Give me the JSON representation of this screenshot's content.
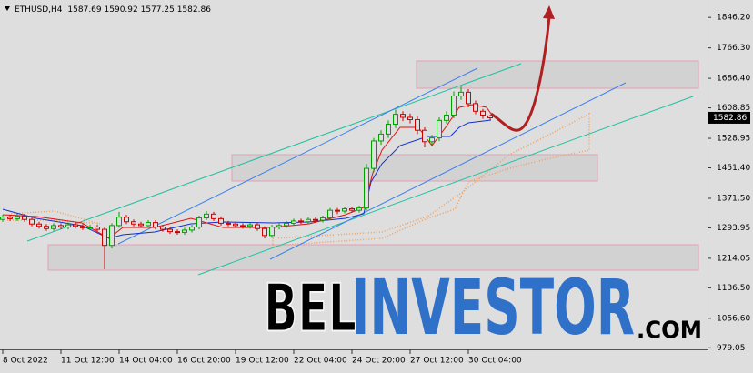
{
  "header": {
    "symbol": "ETHUSD,H4"
  },
  "brand": [
    "BEL",
    "INVESTOR",
    ".COM"
  ],
  "chart_data": {
    "type": "candlestick",
    "up_color": "#00a000",
    "down_color": "#d00000",
    "x": [
      0,
      2,
      4,
      6,
      8,
      10,
      12,
      14,
      16,
      18,
      20,
      22,
      24,
      26,
      28,
      30,
      32,
      34,
      36,
      38,
      40,
      42,
      44,
      46,
      48,
      50,
      52,
      54,
      56,
      58,
      60,
      62,
      64,
      66,
      68,
      70,
      72,
      74,
      76,
      78,
      80,
      82,
      84,
      86,
      88,
      90,
      92,
      94,
      96,
      98,
      100,
      102,
      104,
      106,
      108,
      110,
      112,
      114,
      116,
      118,
      120,
      122,
      124,
      126,
      128,
      130,
      132,
      134
    ],
    "open": [
      1316,
      1322,
      1318,
      1325,
      1316,
      1304,
      1298,
      1292,
      1300,
      1296,
      1302,
      1298,
      1294,
      1296,
      1290,
      1248,
      1300,
      1322,
      1310,
      1304,
      1300,
      1308,
      1296,
      1290,
      1284,
      1282,
      1288,
      1296,
      1320,
      1330,
      1318,
      1306,
      1304,
      1300,
      1298,
      1302,
      1292,
      1274,
      1296,
      1300,
      1306,
      1312,
      1310,
      1316,
      1314,
      1320,
      1340,
      1338,
      1344,
      1340,
      1346,
      1450,
      1522,
      1540,
      1566,
      1592,
      1584,
      1578,
      1550,
      1520,
      1530,
      1576,
      1590,
      1640,
      1650,
      1620,
      1600,
      1587.69
    ],
    "high": [
      1328,
      1328,
      1331,
      1331,
      1322,
      1310,
      1304,
      1306,
      1306,
      1308,
      1308,
      1304,
      1302,
      1302,
      1296,
      1306,
      1336,
      1328,
      1316,
      1310,
      1314,
      1314,
      1302,
      1296,
      1290,
      1294,
      1302,
      1326,
      1338,
      1336,
      1324,
      1312,
      1310,
      1306,
      1308,
      1308,
      1298,
      1302,
      1306,
      1312,
      1318,
      1318,
      1322,
      1322,
      1326,
      1346,
      1346,
      1350,
      1350,
      1352,
      1462,
      1530,
      1550,
      1576,
      1604,
      1600,
      1594,
      1586,
      1558,
      1538,
      1584,
      1600,
      1652,
      1665,
      1658,
      1628,
      1606,
      1590.92
    ],
    "low": [
      1310,
      1312,
      1312,
      1310,
      1298,
      1292,
      1286,
      1286,
      1290,
      1290,
      1292,
      1288,
      1288,
      1284,
      1185,
      1240,
      1294,
      1304,
      1298,
      1294,
      1294,
      1290,
      1284,
      1278,
      1276,
      1276,
      1282,
      1290,
      1314,
      1312,
      1300,
      1298,
      1294,
      1292,
      1292,
      1286,
      1266,
      1268,
      1290,
      1294,
      1300,
      1304,
      1304,
      1308,
      1308,
      1314,
      1330,
      1332,
      1334,
      1334,
      1340,
      1440,
      1512,
      1530,
      1556,
      1574,
      1568,
      1540,
      1505,
      1510,
      1522,
      1568,
      1582,
      1630,
      1610,
      1592,
      1580,
      1577.25
    ],
    "close": [
      1322,
      1318,
      1325,
      1316,
      1304,
      1298,
      1292,
      1300,
      1296,
      1302,
      1298,
      1294,
      1296,
      1290,
      1248,
      1300,
      1322,
      1310,
      1304,
      1300,
      1308,
      1296,
      1290,
      1284,
      1282,
      1288,
      1296,
      1320,
      1330,
      1318,
      1306,
      1304,
      1300,
      1298,
      1302,
      1292,
      1274,
      1296,
      1300,
      1306,
      1312,
      1310,
      1316,
      1314,
      1320,
      1340,
      1338,
      1344,
      1340,
      1346,
      1450,
      1522,
      1540,
      1566,
      1592,
      1584,
      1578,
      1550,
      1520,
      1530,
      1576,
      1590,
      1640,
      1650,
      1620,
      1600,
      1590,
      1582.86
    ],
    "xlim": [
      0,
      194
    ],
    "ylim": [
      975,
      1892
    ],
    "xticks": [
      {
        "value": 0,
        "label": "8 Oct 2022"
      },
      {
        "value": 16,
        "label": "11 Oct 12:00"
      },
      {
        "value": 32,
        "label": "14 Oct 04:00"
      },
      {
        "value": 48,
        "label": "16 Oct 20:00"
      },
      {
        "value": 64,
        "label": "19 Oct 12:00"
      },
      {
        "value": 80,
        "label": "22 Oct 04:00"
      },
      {
        "value": 96,
        "label": "24 Oct 20:00"
      },
      {
        "value": 112,
        "label": "27 Oct 12:00"
      },
      {
        "value": 128,
        "label": "30 Oct 04:00"
      }
    ],
    "yticks": [
      979.05,
      {
        "value": 1056.6,
        "label": "1056.60"
      },
      {
        "value": 1136.5,
        "label": "1136.50"
      },
      1214.05,
      1293.95,
      {
        "value": 1371.5,
        "label": "1371.50"
      },
      {
        "value": 1451.4,
        "label": "1451.40"
      },
      1528.95,
      1608.85,
      {
        "value": 1686.4,
        "label": "1686.40"
      },
      {
        "value": 1766.3,
        "label": "1766.30"
      },
      {
        "value": 1846.2,
        "label": "1846.20"
      }
    ]
  }
}
